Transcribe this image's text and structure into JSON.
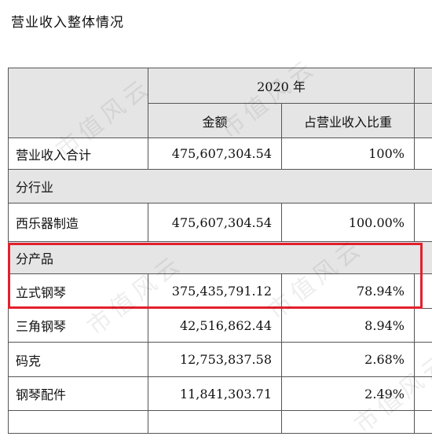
{
  "title": "营业收入整体情况",
  "header": {
    "year": "2020 年",
    "col_amount": "金额",
    "col_ratio": "占营业收入比重"
  },
  "rows": [
    {
      "label": "营业收入合计",
      "amount": "475,607,304.54",
      "ratio": "100%"
    },
    {
      "label": "分行业"
    },
    {
      "label": "西乐器制造",
      "amount": "475,607,304.54",
      "ratio": "100.00%"
    },
    {
      "label": "分产品"
    },
    {
      "label": "立式钢琴",
      "amount": "375,435,791.12",
      "ratio": "78.94%"
    },
    {
      "label": "三角钢琴",
      "amount": "42,516,862.44",
      "ratio": "8.94%"
    },
    {
      "label": "码克",
      "amount": "12,753,837.58",
      "ratio": "2.68%"
    },
    {
      "label": "钢琴配件",
      "amount": "11,841,303.71",
      "ratio": "2.49%"
    }
  ],
  "watermark": "市值风云",
  "colors": {
    "header_bg": "#e5e5e5",
    "border": "#555555",
    "highlight": "#e3202d"
  }
}
